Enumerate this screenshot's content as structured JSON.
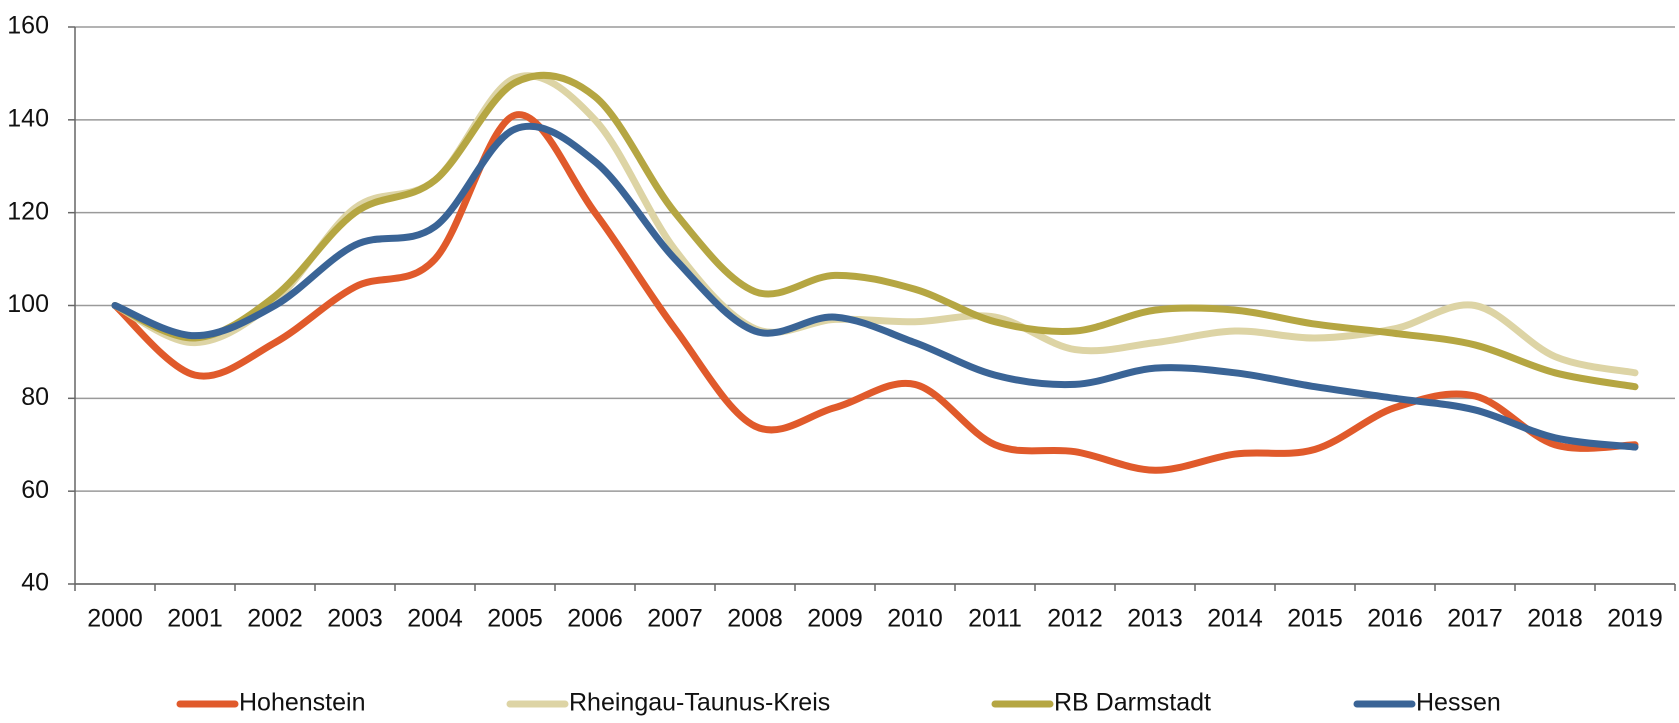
{
  "chart_data": {
    "type": "line",
    "categories": [
      "2000",
      "2001",
      "2002",
      "2003",
      "2004",
      "2005",
      "2006",
      "2007",
      "2008",
      "2009",
      "2010",
      "2011",
      "2012",
      "2013",
      "2014",
      "2015",
      "2016",
      "2017",
      "2018",
      "2019"
    ],
    "series": [
      {
        "name": "Hohenstein",
        "color": "#e05a2b",
        "values": [
          100,
          85,
          92,
          104,
          110,
          141,
          120,
          95,
          74,
          78,
          83,
          70,
          68.5,
          64.5,
          68,
          69,
          78,
          80.5,
          70,
          70
        ]
      },
      {
        "name": "Rheingau-Taunus-Kreis",
        "color": "#ddd4a5",
        "values": [
          100,
          92,
          101,
          121,
          127,
          149,
          140,
          112,
          95,
          97,
          96.5,
          97.5,
          90.5,
          92,
          94.5,
          93,
          95,
          100,
          89,
          85.5
        ]
      },
      {
        "name": "RB Darmstadt",
        "color": "#b5a642",
        "values": [
          100,
          93,
          102,
          120,
          127,
          148,
          145,
          120,
          103,
          106.5,
          103.5,
          96.5,
          94.5,
          99,
          99,
          96,
          94,
          91.5,
          85.5,
          82.5
        ]
      },
      {
        "name": "Hessen",
        "color": "#3a6496",
        "values": [
          100,
          93.5,
          100,
          113,
          117,
          138,
          131,
          110,
          94.5,
          97.5,
          92,
          85,
          83,
          86.5,
          85.5,
          82.5,
          80,
          77.5,
          71.5,
          69.5
        ]
      }
    ],
    "ylim": [
      40,
      160
    ],
    "yticks": [
      40,
      60,
      80,
      100,
      120,
      140,
      160
    ],
    "grid": true,
    "legend": "bottom"
  }
}
